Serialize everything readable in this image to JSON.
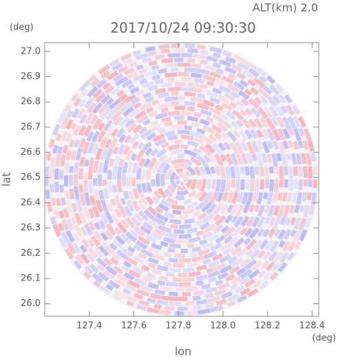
{
  "chart_data": {
    "type": "ppi",
    "title": "2017/10/24 09:30:30",
    "subtitle": "ALT(km) 2.0",
    "x_label": "lon",
    "y_label": "lat",
    "x_unit": "(deg)",
    "y_unit": "(deg)",
    "xlim": [
      127.2,
      128.43
    ],
    "ylim": [
      25.95,
      27.035
    ],
    "xticks": [
      127.4,
      127.6,
      127.8,
      {
        "value": 128.0,
        "label": "128.0"
      },
      128.2,
      128.4
    ],
    "yticks": [
      {
        "value": 26.0,
        "label": "26.0"
      },
      26.1,
      26.2,
      26.3,
      26.4,
      26.5,
      26.6,
      26.7,
      26.8,
      26.9,
      {
        "value": 27.0,
        "label": "27.0"
      }
    ]
  }
}
